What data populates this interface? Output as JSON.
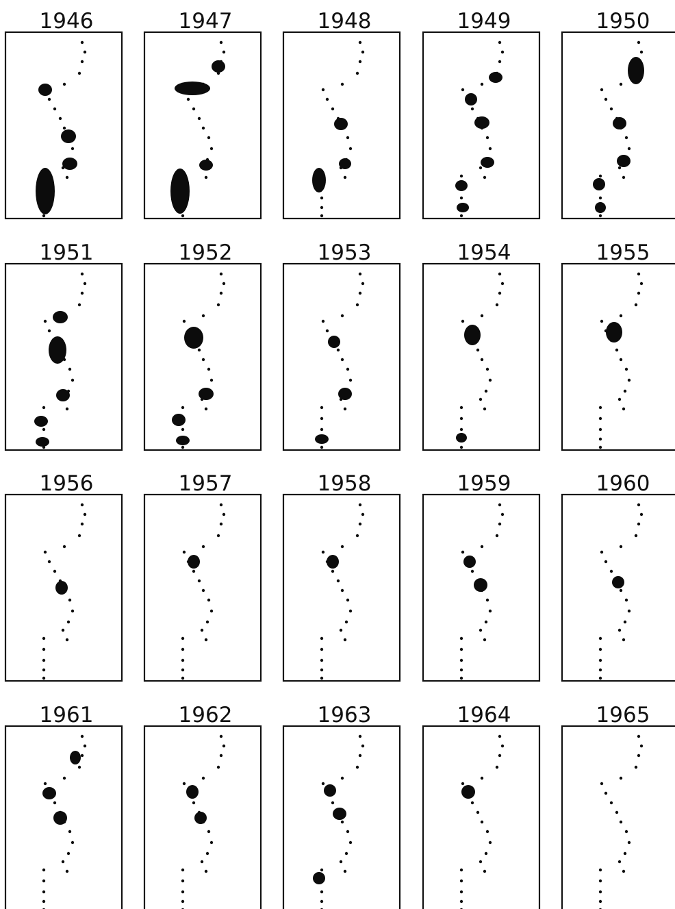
{
  "panels": [
    "1946",
    "1947",
    "1948",
    "1949",
    "1950",
    "1951",
    "1952",
    "1953",
    "1954",
    "1955",
    "1956",
    "1957",
    "1958",
    "1959",
    "1960",
    "1961",
    "1962",
    "1963",
    "1964",
    "1965"
  ]
}
